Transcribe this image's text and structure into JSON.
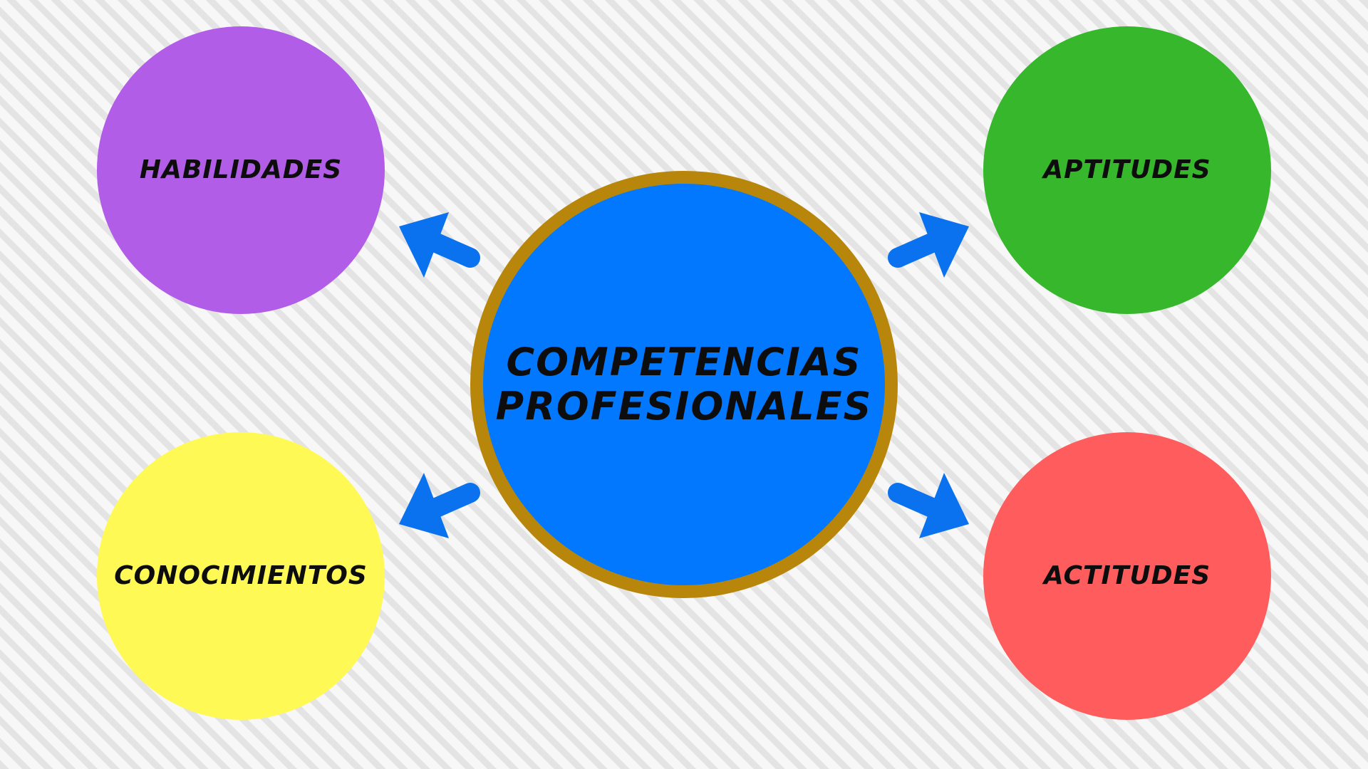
{
  "center": {
    "line1": "COMPETENCIAS",
    "line2": "PROFESIONALES",
    "fill": "#0278fe",
    "border": "#b8860b"
  },
  "nodes": {
    "habilidades": {
      "label": "HABILIDADES",
      "fill": "#b25de8"
    },
    "aptitudes": {
      "label": "APTITUDES",
      "fill": "#36b72c"
    },
    "conocimientos": {
      "label": "CONOCIMIENTOS",
      "fill": "#fff955"
    },
    "actitudes": {
      "label": "ACTITUDES",
      "fill": "#ff5d5d"
    }
  },
  "arrow_color": "#0a72ee"
}
